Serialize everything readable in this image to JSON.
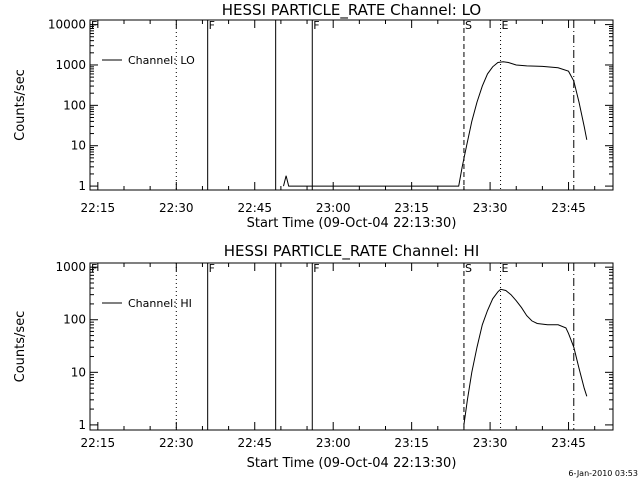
{
  "footer": {
    "timestamp": "6-Jan-2010 03:53"
  },
  "chart_data": [
    {
      "type": "line",
      "title": "HESSI PARTICLE_RATE Channel: LO",
      "xlabel": "Start Time (09-Oct-04 22:13:30)",
      "ylabel": "Counts/sec",
      "x_ticks": [
        "22:15",
        "22:30",
        "22:45",
        "23:00",
        "23:15",
        "23:30",
        "23:45"
      ],
      "y_ticks": [
        "1",
        "10",
        "100",
        "1000",
        "10000"
      ],
      "y_scale": "log",
      "xlim": [
        "22:13:30",
        "23:53:30"
      ],
      "ylim": [
        0.8,
        13000
      ],
      "grid": false,
      "legend_position": "top-left",
      "series": [
        {
          "name": "Channel: LO",
          "points": [
            [
              "22:50:30",
              1
            ],
            [
              "22:51:00",
              1.8
            ],
            [
              "22:51:30",
              1
            ],
            [
              "23:24:00",
              1
            ],
            [
              "23:24:40",
              3
            ],
            [
              "23:25:30",
              10
            ],
            [
              "23:26:30",
              40
            ],
            [
              "23:27:30",
              120
            ],
            [
              "23:28:30",
              300
            ],
            [
              "23:29:30",
              600
            ],
            [
              "23:30:30",
              900
            ],
            [
              "23:31:30",
              1150
            ],
            [
              "23:32:30",
              1200
            ],
            [
              "23:33:30",
              1150
            ],
            [
              "23:35:00",
              1000
            ],
            [
              "23:37:00",
              950
            ],
            [
              "23:40:00",
              920
            ],
            [
              "23:43:00",
              850
            ],
            [
              "23:45:00",
              700
            ],
            [
              "23:46:00",
              400
            ],
            [
              "23:47:00",
              120
            ],
            [
              "23:48:00",
              30
            ],
            [
              "23:48:30",
              14
            ]
          ]
        }
      ],
      "markers": [
        {
          "label": "F",
          "time": "22:13:30",
          "style": "solid"
        },
        {
          "label": "",
          "time": "22:30:00",
          "style": "dotted"
        },
        {
          "label": "F",
          "time": "22:36:00",
          "style": "solid"
        },
        {
          "label": "",
          "time": "22:49:00",
          "style": "solid"
        },
        {
          "label": "F",
          "time": "22:56:00",
          "style": "solid"
        },
        {
          "label": "S",
          "time": "23:25:00",
          "style": "dashed"
        },
        {
          "label": "E",
          "time": "23:32:00",
          "style": "dotted"
        },
        {
          "label": "",
          "time": "23:46:00",
          "style": "dashdot"
        }
      ]
    },
    {
      "type": "line",
      "title": "HESSI PARTICLE_RATE Channel: HI",
      "xlabel": "Start Time (09-Oct-04 22:13:30)",
      "ylabel": "Counts/sec",
      "x_ticks": [
        "22:15",
        "22:30",
        "22:45",
        "23:00",
        "23:15",
        "23:30",
        "23:45"
      ],
      "y_ticks": [
        "1",
        "10",
        "100",
        "1000"
      ],
      "y_scale": "log",
      "xlim": [
        "22:13:30",
        "23:53:30"
      ],
      "ylim": [
        0.8,
        1200
      ],
      "grid": false,
      "legend_position": "top-left",
      "series": [
        {
          "name": "Channel: HI",
          "points": [
            [
              "23:25:00",
              1
            ],
            [
              "23:25:40",
              3
            ],
            [
              "23:26:30",
              10
            ],
            [
              "23:27:30",
              30
            ],
            [
              "23:28:30",
              80
            ],
            [
              "23:29:30",
              150
            ],
            [
              "23:30:30",
              250
            ],
            [
              "23:31:30",
              340
            ],
            [
              "23:32:00",
              380
            ],
            [
              "23:33:00",
              360
            ],
            [
              "23:34:00",
              300
            ],
            [
              "23:35:00",
              230
            ],
            [
              "23:36:00",
              170
            ],
            [
              "23:37:00",
              120
            ],
            [
              "23:38:00",
              95
            ],
            [
              "23:39:00",
              85
            ],
            [
              "23:41:00",
              80
            ],
            [
              "23:43:00",
              80
            ],
            [
              "23:44:30",
              70
            ],
            [
              "23:45:00",
              55
            ],
            [
              "23:46:00",
              30
            ],
            [
              "23:47:00",
              12
            ],
            [
              "23:48:00",
              5
            ],
            [
              "23:48:30",
              3.5
            ]
          ]
        }
      ],
      "markers": [
        {
          "label": "F",
          "time": "22:13:30",
          "style": "solid"
        },
        {
          "label": "",
          "time": "22:30:00",
          "style": "dotted"
        },
        {
          "label": "F",
          "time": "22:36:00",
          "style": "solid"
        },
        {
          "label": "",
          "time": "22:49:00",
          "style": "solid"
        },
        {
          "label": "F",
          "time": "22:56:00",
          "style": "solid"
        },
        {
          "label": "S",
          "time": "23:25:00",
          "style": "dashed"
        },
        {
          "label": "E",
          "time": "23:32:00",
          "style": "dotted"
        },
        {
          "label": "",
          "time": "23:46:00",
          "style": "dashdot"
        }
      ]
    }
  ]
}
